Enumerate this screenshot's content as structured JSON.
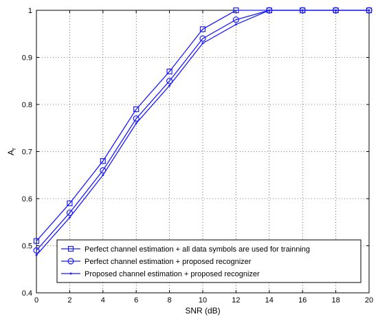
{
  "chart_data": {
    "type": "line",
    "xlabel": "SNR (dB)",
    "ylabel_main": "A",
    "ylabel_sub": "r",
    "xlim": [
      0,
      20
    ],
    "ylim": [
      0.4,
      1
    ],
    "x_ticks": [
      0,
      2,
      4,
      6,
      8,
      10,
      12,
      14,
      16,
      18,
      20
    ],
    "y_ticks": [
      0.4,
      0.5,
      0.6,
      0.7,
      0.8,
      0.9,
      1
    ],
    "y_tick_labels": [
      "0.4",
      "0.5",
      "0.6",
      "0.7",
      "0.8",
      "0.9",
      "1"
    ],
    "grid": true,
    "grid_style": "dotted",
    "legend_position": "bottom-right",
    "line_color": "#1a1aff",
    "x": [
      0,
      2,
      4,
      6,
      8,
      10,
      12,
      14,
      16,
      18,
      20
    ],
    "series": [
      {
        "name": "Perfect channel estimation + all data symbols are used for trainning",
        "marker": "square",
        "values": [
          0.51,
          0.59,
          0.68,
          0.79,
          0.87,
          0.96,
          1.0,
          1.0,
          1.0,
          1.0,
          1.0
        ]
      },
      {
        "name": "Perfect channel estimation + proposed recognizer",
        "marker": "circle",
        "values": [
          0.49,
          0.57,
          0.66,
          0.77,
          0.85,
          0.94,
          0.98,
          1.0,
          1.0,
          1.0,
          1.0
        ]
      },
      {
        "name": "Proposed channel estimation + proposed recognizer",
        "marker": "dot",
        "values": [
          0.48,
          0.56,
          0.65,
          0.76,
          0.84,
          0.93,
          0.97,
          1.0,
          1.0,
          1.0,
          1.0
        ]
      }
    ]
  }
}
